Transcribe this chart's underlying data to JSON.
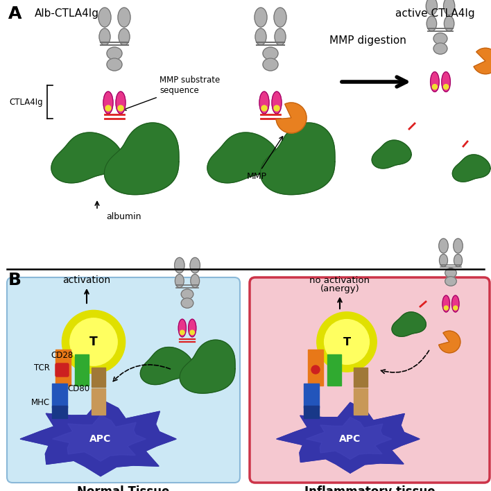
{
  "bg_color": "#ffffff",
  "panel_A_label": "A",
  "panel_B_label": "B",
  "label_alb_ctla4ig": "Alb-CTLA4Ig",
  "label_active_ctla4ig": "active CTLA4Ig",
  "label_ctla4ig": "CTLA4Ig",
  "label_mmp_substrate": "MMP substrate\nsequence",
  "label_albumin": "albumin",
  "label_mmp_digestion": "MMP digestion",
  "label_mmp": "MMP",
  "label_normal_tissue": "Normal Tissue",
  "label_inflammatory_tissue": "Inflammatory tissue",
  "label_activation": "activation",
  "label_no_activation": "no activation\n(anergy)",
  "label_T": "T",
  "label_APC": "APC",
  "label_TCR": "TCR",
  "label_MHC": "MHC",
  "label_CD28": "CD28",
  "label_CD80": "CD80",
  "colors": {
    "albumin_green_dark": "#1e5c1e",
    "albumin_green_mid": "#2d7a2d",
    "albumin_green_light": "#4ca04c",
    "ab_gray": "#b0b0b0",
    "ab_gray_dark": "#707070",
    "ab_gray_grad": "#d0d0d0",
    "linker_pink": "#e8358a",
    "cd80_yellow": "#f0e030",
    "red_linker": "#dd2020",
    "mmp_orange": "#e88020",
    "mmp_orange_dark": "#c06010",
    "apc_blue": "#3535aa",
    "apc_blue_mid": "#4545bb",
    "apc_blue_light": "#5555cc",
    "t_yellow_out": "#e0e000",
    "t_yellow_in": "#ffff60",
    "cd28_green": "#30aa30",
    "tcr_orange": "#e87818",
    "mhc_blue": "#2255bb",
    "mhc_blue_dark": "#183888",
    "cd80_tan": "#c89858",
    "cd80_tan_dark": "#a07838",
    "normal_tissue_bg": "#cce8f5",
    "normal_tissue_border": "#8ab8d8",
    "inflammatory_bg": "#f5c8d0",
    "inflammatory_border": "#cc3348",
    "black": "#000000",
    "white": "#ffffff",
    "red_diamond": "#cc2020"
  }
}
